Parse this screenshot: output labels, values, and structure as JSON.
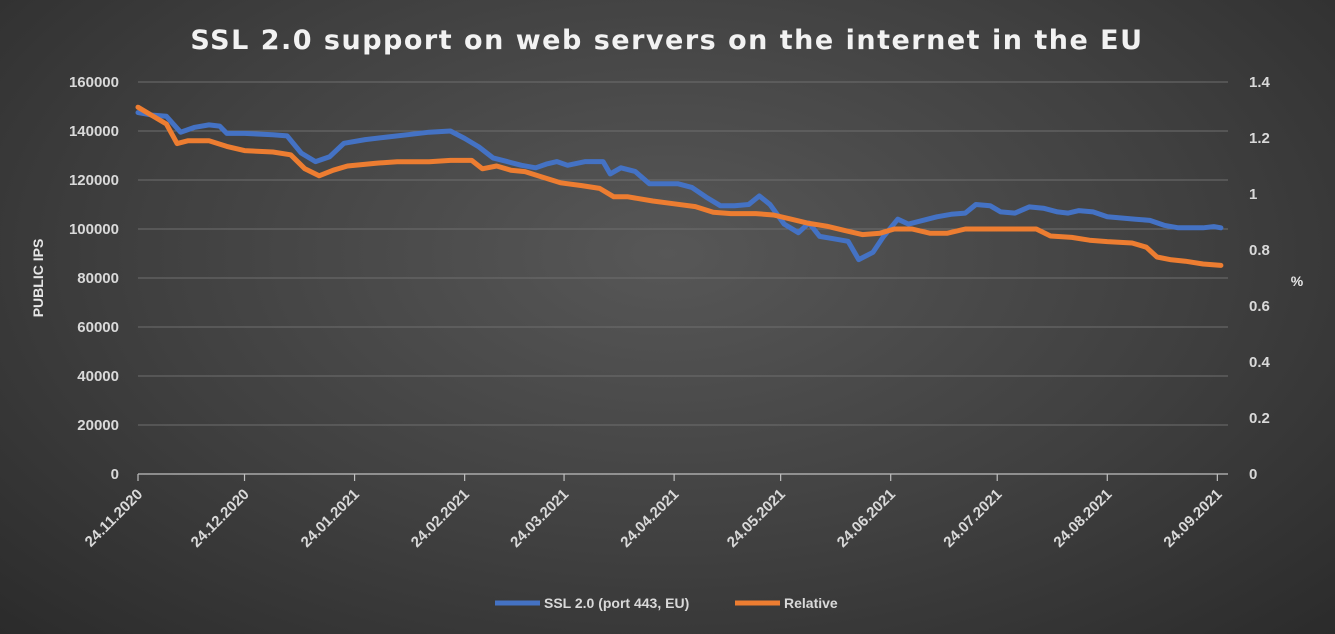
{
  "chart_data": {
    "type": "line",
    "title": "SSL 2.0 support on web servers on the internet in the EU",
    "ylabel": "PUBLIC IPS",
    "y2label": "%",
    "ylim": [
      0,
      160000
    ],
    "y2lim": [
      0,
      1.4
    ],
    "yticks": [
      "0",
      "20000",
      "40000",
      "60000",
      "80000",
      "100000",
      "120000",
      "140000",
      "160000"
    ],
    "y2ticks": [
      "0",
      "0.2",
      "0.4",
      "0.6",
      "0.8",
      "1",
      "1.2",
      "1.4"
    ],
    "xticks": [
      "24.11.2020",
      "24.12.2020",
      "24.01.2021",
      "24.02.2021",
      "24.03.2021",
      "24.04.2021",
      "24.05.2021",
      "24.06.2021",
      "24.07.2021",
      "24.08.2021",
      "24.09.2021"
    ],
    "x_start": "2020-11-24",
    "x_end": "2021-09-24",
    "legend_position": "bottom",
    "grid": true,
    "series": [
      {
        "name": "SSL 2.0 (port 443, EU)",
        "axis": "left",
        "color": "#4472c4",
        "points": [
          [
            "2020-11-24",
            147500
          ],
          [
            "2020-11-28",
            146500
          ],
          [
            "2020-12-02",
            146000
          ],
          [
            "2020-12-06",
            139500
          ],
          [
            "2020-12-10",
            141500
          ],
          [
            "2020-12-14",
            142500
          ],
          [
            "2020-12-17",
            142000
          ],
          [
            "2020-12-19",
            139000
          ],
          [
            "2020-12-24",
            139000
          ],
          [
            "2021-01-01",
            138500
          ],
          [
            "2021-01-05",
            138000
          ],
          [
            "2021-01-09",
            131000
          ],
          [
            "2021-01-13",
            127500
          ],
          [
            "2021-01-17",
            129500
          ],
          [
            "2021-01-21",
            135000
          ],
          [
            "2021-01-27",
            136500
          ],
          [
            "2021-02-02",
            137500
          ],
          [
            "2021-02-08",
            138500
          ],
          [
            "2021-02-14",
            139500
          ],
          [
            "2021-02-20",
            140000
          ],
          [
            "2021-02-24",
            137000
          ],
          [
            "2021-02-28",
            133500
          ],
          [
            "2021-03-04",
            129000
          ],
          [
            "2021-03-08",
            127500
          ],
          [
            "2021-03-12",
            126000
          ],
          [
            "2021-03-16",
            125000
          ],
          [
            "2021-03-19",
            126500
          ],
          [
            "2021-03-22",
            127500
          ],
          [
            "2021-03-25",
            126000
          ],
          [
            "2021-03-30",
            127500
          ],
          [
            "2021-04-04",
            127500
          ],
          [
            "2021-04-06",
            122500
          ],
          [
            "2021-04-09",
            125000
          ],
          [
            "2021-04-13",
            123500
          ],
          [
            "2021-04-17",
            118500
          ],
          [
            "2021-04-21",
            118500
          ],
          [
            "2021-04-25",
            118500
          ],
          [
            "2021-04-29",
            117000
          ],
          [
            "2021-05-03",
            113000
          ],
          [
            "2021-05-07",
            109500
          ],
          [
            "2021-05-11",
            109500
          ],
          [
            "2021-05-15",
            110000
          ],
          [
            "2021-05-18",
            113500
          ],
          [
            "2021-05-21",
            110000
          ],
          [
            "2021-05-25",
            102000
          ],
          [
            "2021-05-29",
            98500
          ],
          [
            "2021-06-01",
            102500
          ],
          [
            "2021-06-04",
            97000
          ],
          [
            "2021-06-08",
            96000
          ],
          [
            "2021-06-12",
            95000
          ],
          [
            "2021-06-15",
            87500
          ],
          [
            "2021-06-19",
            90500
          ],
          [
            "2021-06-22",
            97000
          ],
          [
            "2021-06-26",
            104000
          ],
          [
            "2021-06-29",
            102000
          ],
          [
            "2021-07-03",
            103500
          ],
          [
            "2021-07-07",
            105000
          ],
          [
            "2021-07-11",
            106000
          ],
          [
            "2021-07-15",
            106500
          ],
          [
            "2021-07-18",
            110000
          ],
          [
            "2021-07-22",
            109500
          ],
          [
            "2021-07-25",
            107000
          ],
          [
            "2021-07-29",
            106500
          ],
          [
            "2021-08-02",
            109000
          ],
          [
            "2021-08-06",
            108500
          ],
          [
            "2021-08-10",
            107000
          ],
          [
            "2021-08-13",
            106500
          ],
          [
            "2021-08-16",
            107500
          ],
          [
            "2021-08-20",
            107000
          ],
          [
            "2021-08-24",
            105000
          ],
          [
            "2021-08-28",
            104500
          ],
          [
            "2021-09-01",
            104000
          ],
          [
            "2021-09-05",
            103500
          ],
          [
            "2021-09-09",
            101500
          ],
          [
            "2021-09-13",
            100500
          ],
          [
            "2021-09-17",
            100500
          ],
          [
            "2021-09-20",
            100500
          ],
          [
            "2021-09-23",
            101000
          ],
          [
            "2021-09-25",
            100500
          ]
        ]
      },
      {
        "name": "Relative",
        "axis": "right",
        "color": "#ed7d31",
        "points": [
          [
            "2020-11-24",
            1.31
          ],
          [
            "2020-11-28",
            1.28
          ],
          [
            "2020-12-02",
            1.25
          ],
          [
            "2020-12-05",
            1.18
          ],
          [
            "2020-12-08",
            1.19
          ],
          [
            "2020-12-14",
            1.19
          ],
          [
            "2020-12-19",
            1.17
          ],
          [
            "2020-12-24",
            1.155
          ],
          [
            "2021-01-01",
            1.15
          ],
          [
            "2021-01-06",
            1.14
          ],
          [
            "2021-01-10",
            1.09
          ],
          [
            "2021-01-14",
            1.065
          ],
          [
            "2021-01-18",
            1.085
          ],
          [
            "2021-01-22",
            1.1
          ],
          [
            "2021-01-30",
            1.11
          ],
          [
            "2021-02-05",
            1.115
          ],
          [
            "2021-02-14",
            1.115
          ],
          [
            "2021-02-20",
            1.12
          ],
          [
            "2021-02-26",
            1.12
          ],
          [
            "2021-03-01",
            1.09
          ],
          [
            "2021-03-05",
            1.1
          ],
          [
            "2021-03-09",
            1.085
          ],
          [
            "2021-03-13",
            1.08
          ],
          [
            "2021-03-18",
            1.06
          ],
          [
            "2021-03-23",
            1.04
          ],
          [
            "2021-03-29",
            1.03
          ],
          [
            "2021-04-03",
            1.02
          ],
          [
            "2021-04-07",
            0.99
          ],
          [
            "2021-04-11",
            0.99
          ],
          [
            "2021-04-18",
            0.975
          ],
          [
            "2021-04-24",
            0.965
          ],
          [
            "2021-04-30",
            0.955
          ],
          [
            "2021-05-05",
            0.935
          ],
          [
            "2021-05-10",
            0.93
          ],
          [
            "2021-05-17",
            0.93
          ],
          [
            "2021-05-22",
            0.925
          ],
          [
            "2021-05-27",
            0.91
          ],
          [
            "2021-06-01",
            0.895
          ],
          [
            "2021-06-06",
            0.885
          ],
          [
            "2021-06-11",
            0.87
          ],
          [
            "2021-06-16",
            0.855
          ],
          [
            "2021-06-21",
            0.86
          ],
          [
            "2021-06-25",
            0.875
          ],
          [
            "2021-06-30",
            0.875
          ],
          [
            "2021-07-05",
            0.86
          ],
          [
            "2021-07-10",
            0.86
          ],
          [
            "2021-07-15",
            0.875
          ],
          [
            "2021-07-20",
            0.875
          ],
          [
            "2021-07-29",
            0.875
          ],
          [
            "2021-08-04",
            0.875
          ],
          [
            "2021-08-08",
            0.85
          ],
          [
            "2021-08-14",
            0.845
          ],
          [
            "2021-08-19",
            0.835
          ],
          [
            "2021-08-24",
            0.83
          ],
          [
            "2021-08-31",
            0.825
          ],
          [
            "2021-09-04",
            0.81
          ],
          [
            "2021-09-07",
            0.775
          ],
          [
            "2021-09-11",
            0.765
          ],
          [
            "2021-09-15",
            0.76
          ],
          [
            "2021-09-20",
            0.75
          ],
          [
            "2021-09-25",
            0.745
          ]
        ]
      }
    ]
  }
}
